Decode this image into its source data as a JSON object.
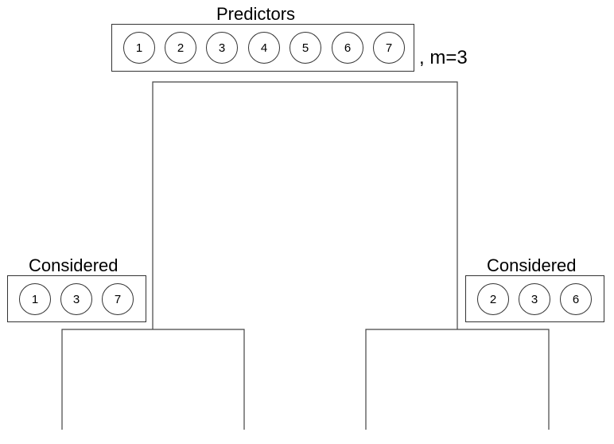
{
  "predictors": {
    "title": "Predictors",
    "items": [
      "1",
      "2",
      "3",
      "4",
      "5",
      "6",
      "7"
    ],
    "m_label": ", m=3"
  },
  "left_node": {
    "title": "Considered",
    "items": [
      "1",
      "3",
      "7"
    ]
  },
  "right_node": {
    "title": "Considered",
    "items": [
      "2",
      "3",
      "6"
    ]
  }
}
